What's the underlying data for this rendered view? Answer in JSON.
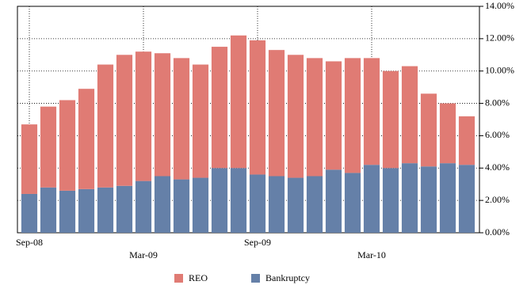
{
  "chart_data": {
    "type": "stacked-bar",
    "categories": [
      "Sep-08",
      null,
      null,
      null,
      null,
      null,
      "Mar-09",
      null,
      null,
      null,
      null,
      null,
      "Sep-09",
      null,
      null,
      null,
      null,
      null,
      "Mar-10",
      null,
      null,
      null,
      null,
      null
    ],
    "series": [
      {
        "name": "REO",
        "color": "#e07b74",
        "values": [
          4.3,
          5.0,
          5.6,
          6.2,
          7.6,
          8.1,
          8.0,
          7.6,
          7.5,
          7.0,
          7.5,
          8.2,
          8.3,
          7.8,
          7.6,
          7.3,
          6.7,
          7.1,
          6.6,
          6.0,
          6.0,
          4.5,
          3.7,
          3.0
        ]
      },
      {
        "name": "Bankruptcy",
        "color": "#6580a8",
        "values": [
          2.4,
          2.8,
          2.6,
          2.7,
          2.8,
          2.9,
          3.2,
          3.5,
          3.3,
          3.4,
          4.0,
          4.0,
          3.6,
          3.5,
          3.4,
          3.5,
          3.9,
          3.7,
          4.2,
          4.0,
          4.3,
          4.1,
          4.3,
          4.2
        ]
      }
    ],
    "ylim": [
      0,
      14
    ],
    "yticks": [
      {
        "value": 0,
        "label": "0.00%"
      },
      {
        "value": 2,
        "label": "2.00%"
      },
      {
        "value": 4,
        "label": "4.00%"
      },
      {
        "value": 6,
        "label": "6.00%"
      },
      {
        "value": 8,
        "label": "8.00%"
      },
      {
        "value": 10,
        "label": "10.00%"
      },
      {
        "value": 12,
        "label": "12.00%"
      },
      {
        "value": 14,
        "label": "14.00%"
      }
    ],
    "grid": true,
    "legend": "bottom"
  }
}
